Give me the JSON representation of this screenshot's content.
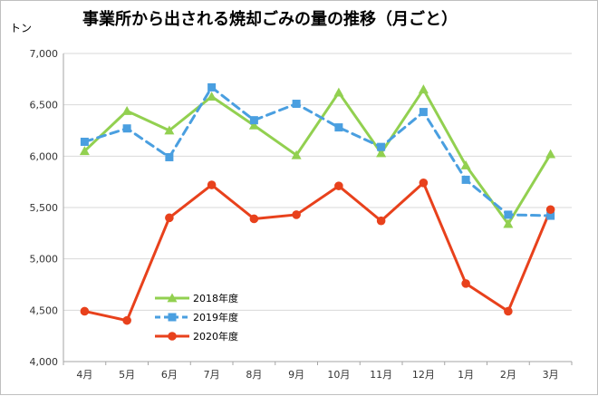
{
  "chart_data": {
    "type": "line",
    "title": "事業所から出される焼却ごみの量の推移（月ごと）",
    "ylabel": "トン",
    "xlabel": "",
    "categories": [
      "4月",
      "5月",
      "6月",
      "7月",
      "8月",
      "9月",
      "10月",
      "11月",
      "12月",
      "1月",
      "2月",
      "3月"
    ],
    "ylim": [
      4000,
      7000
    ],
    "yticks": [
      4000,
      4500,
      5000,
      5500,
      6000,
      6500,
      7000
    ],
    "ytick_labels": [
      "4,000",
      "4,500",
      "5,000",
      "5,500",
      "6,000",
      "6,500",
      "7,000"
    ],
    "grid": true,
    "legend_position": "lower-left",
    "series": [
      {
        "name": "2018年度",
        "color": "#92d050",
        "marker": "triangle",
        "dash": false,
        "values": [
          6050,
          6440,
          6250,
          6580,
          6300,
          6010,
          6620,
          6030,
          6650,
          5910,
          5340,
          6020
        ]
      },
      {
        "name": "2019年度",
        "color": "#4a9fe0",
        "marker": "square",
        "dash": true,
        "values": [
          6140,
          6270,
          5990,
          6670,
          6350,
          6510,
          6280,
          6090,
          6430,
          5770,
          5430,
          5420
        ]
      },
      {
        "name": "2020年度",
        "color": "#e8411c",
        "marker": "circle",
        "dash": false,
        "values": [
          4490,
          4400,
          5400,
          5720,
          5390,
          5430,
          5710,
          5370,
          5740,
          4760,
          4490,
          5480
        ]
      }
    ]
  }
}
